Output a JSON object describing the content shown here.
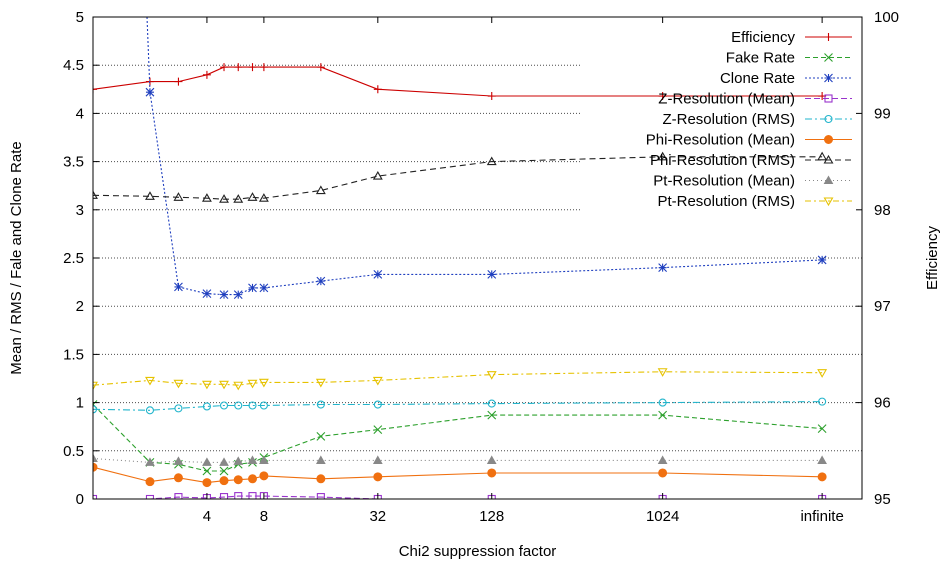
{
  "chart_data": {
    "type": "line",
    "xlabel": "Chi2 suppression factor",
    "ylabel": "Mean / RMS / Fale and Clone Rate",
    "y2label": "Efficiency",
    "ylim": [
      0,
      5
    ],
    "y2lim": [
      95,
      100
    ],
    "yticks": [
      "0",
      "0.5",
      "1",
      "1.5",
      "2",
      "2.5",
      "3",
      "3.5",
      "4",
      "4.5",
      "5"
    ],
    "y2ticks": [
      "95",
      "96",
      "97",
      "98",
      "99",
      "100"
    ],
    "xticks": [
      {
        "label": "4",
        "pos": 4
      },
      {
        "label": "8",
        "pos": 6
      },
      {
        "label": "32",
        "pos": 10
      },
      {
        "label": "128",
        "pos": 14
      },
      {
        "label": "1024",
        "pos": 20
      },
      {
        "label": "infinite",
        "pos": 25.6
      }
    ],
    "x": [
      0,
      2,
      3,
      4,
      4.6,
      5.1,
      5.6,
      6,
      8,
      10,
      14,
      20,
      25.6
    ],
    "legend_position": "top-right",
    "series": [
      {
        "name": "Efficiency",
        "axis": "y2",
        "color": "#cc0000",
        "dash": "",
        "marker": "plus",
        "values": [
          99.25,
          99.33,
          99.33,
          99.4,
          99.48,
          99.48,
          99.48,
          99.48,
          99.48,
          99.25,
          99.18,
          99.18,
          99.18
        ]
      },
      {
        "name": "Fake Rate",
        "axis": "y",
        "color": "#2ca02c",
        "dash": "5,3",
        "marker": "x",
        "values": [
          0.98,
          0.38,
          0.36,
          0.29,
          0.29,
          0.36,
          0.38,
          0.43,
          0.65,
          0.72,
          0.87,
          0.87,
          0.73
        ]
      },
      {
        "name": "Clone Rate",
        "axis": "y",
        "color": "#1f3fbf",
        "dash": "2,2",
        "marker": "star",
        "values": [
          4.8,
          4.22,
          2.2,
          2.13,
          2.12,
          2.12,
          2.19,
          2.19,
          2.26,
          2.33,
          2.33,
          2.4,
          2.48
        ]
      },
      {
        "name": "Z-Resolution (Mean)",
        "axis": "y",
        "color": "#9933cc",
        "dash": "6,3",
        "marker": "square",
        "values": [
          0.0,
          0.0,
          0.02,
          0.01,
          0.02,
          0.03,
          0.03,
          0.03,
          0.02,
          0.0,
          0.0,
          0.0,
          0.0
        ]
      },
      {
        "name": "Z-Resolution (RMS)",
        "axis": "y",
        "color": "#22b5cc",
        "dash": "7,3,2,3",
        "marker": "circle",
        "values": [
          0.93,
          0.92,
          0.94,
          0.96,
          0.97,
          0.97,
          0.97,
          0.97,
          0.98,
          0.98,
          0.99,
          1.0,
          1.01
        ]
      },
      {
        "name": "Phi-Resolution (Mean)",
        "axis": "y",
        "color": "#f07010",
        "dash": "",
        "marker": "dot",
        "values": [
          0.33,
          0.18,
          0.22,
          0.17,
          0.19,
          0.2,
          0.21,
          0.24,
          0.21,
          0.23,
          0.27,
          0.27,
          0.23
        ]
      },
      {
        "name": "Phi-Resolution (RMS)",
        "axis": "y",
        "color": "#222222",
        "dash": "6,4",
        "marker": "triangle-open",
        "values": [
          3.15,
          3.14,
          3.13,
          3.12,
          3.11,
          3.11,
          3.13,
          3.12,
          3.2,
          3.35,
          3.5,
          3.55,
          3.55
        ]
      },
      {
        "name": "Pt-Resolution (Mean)",
        "axis": "y",
        "color": "#888888",
        "dash": "1,3",
        "marker": "triangle-filled",
        "values": [
          0.42,
          0.38,
          0.39,
          0.38,
          0.38,
          0.39,
          0.4,
          0.4,
          0.4,
          0.4,
          0.4,
          0.4,
          0.4
        ]
      },
      {
        "name": "Pt-Resolution (RMS)",
        "axis": "y",
        "color": "#e6c200",
        "dash": "6,3,2,3",
        "marker": "triangle-down",
        "values": [
          1.18,
          1.23,
          1.2,
          1.19,
          1.19,
          1.18,
          1.2,
          1.21,
          1.21,
          1.23,
          1.29,
          1.32,
          1.31
        ]
      }
    ]
  }
}
